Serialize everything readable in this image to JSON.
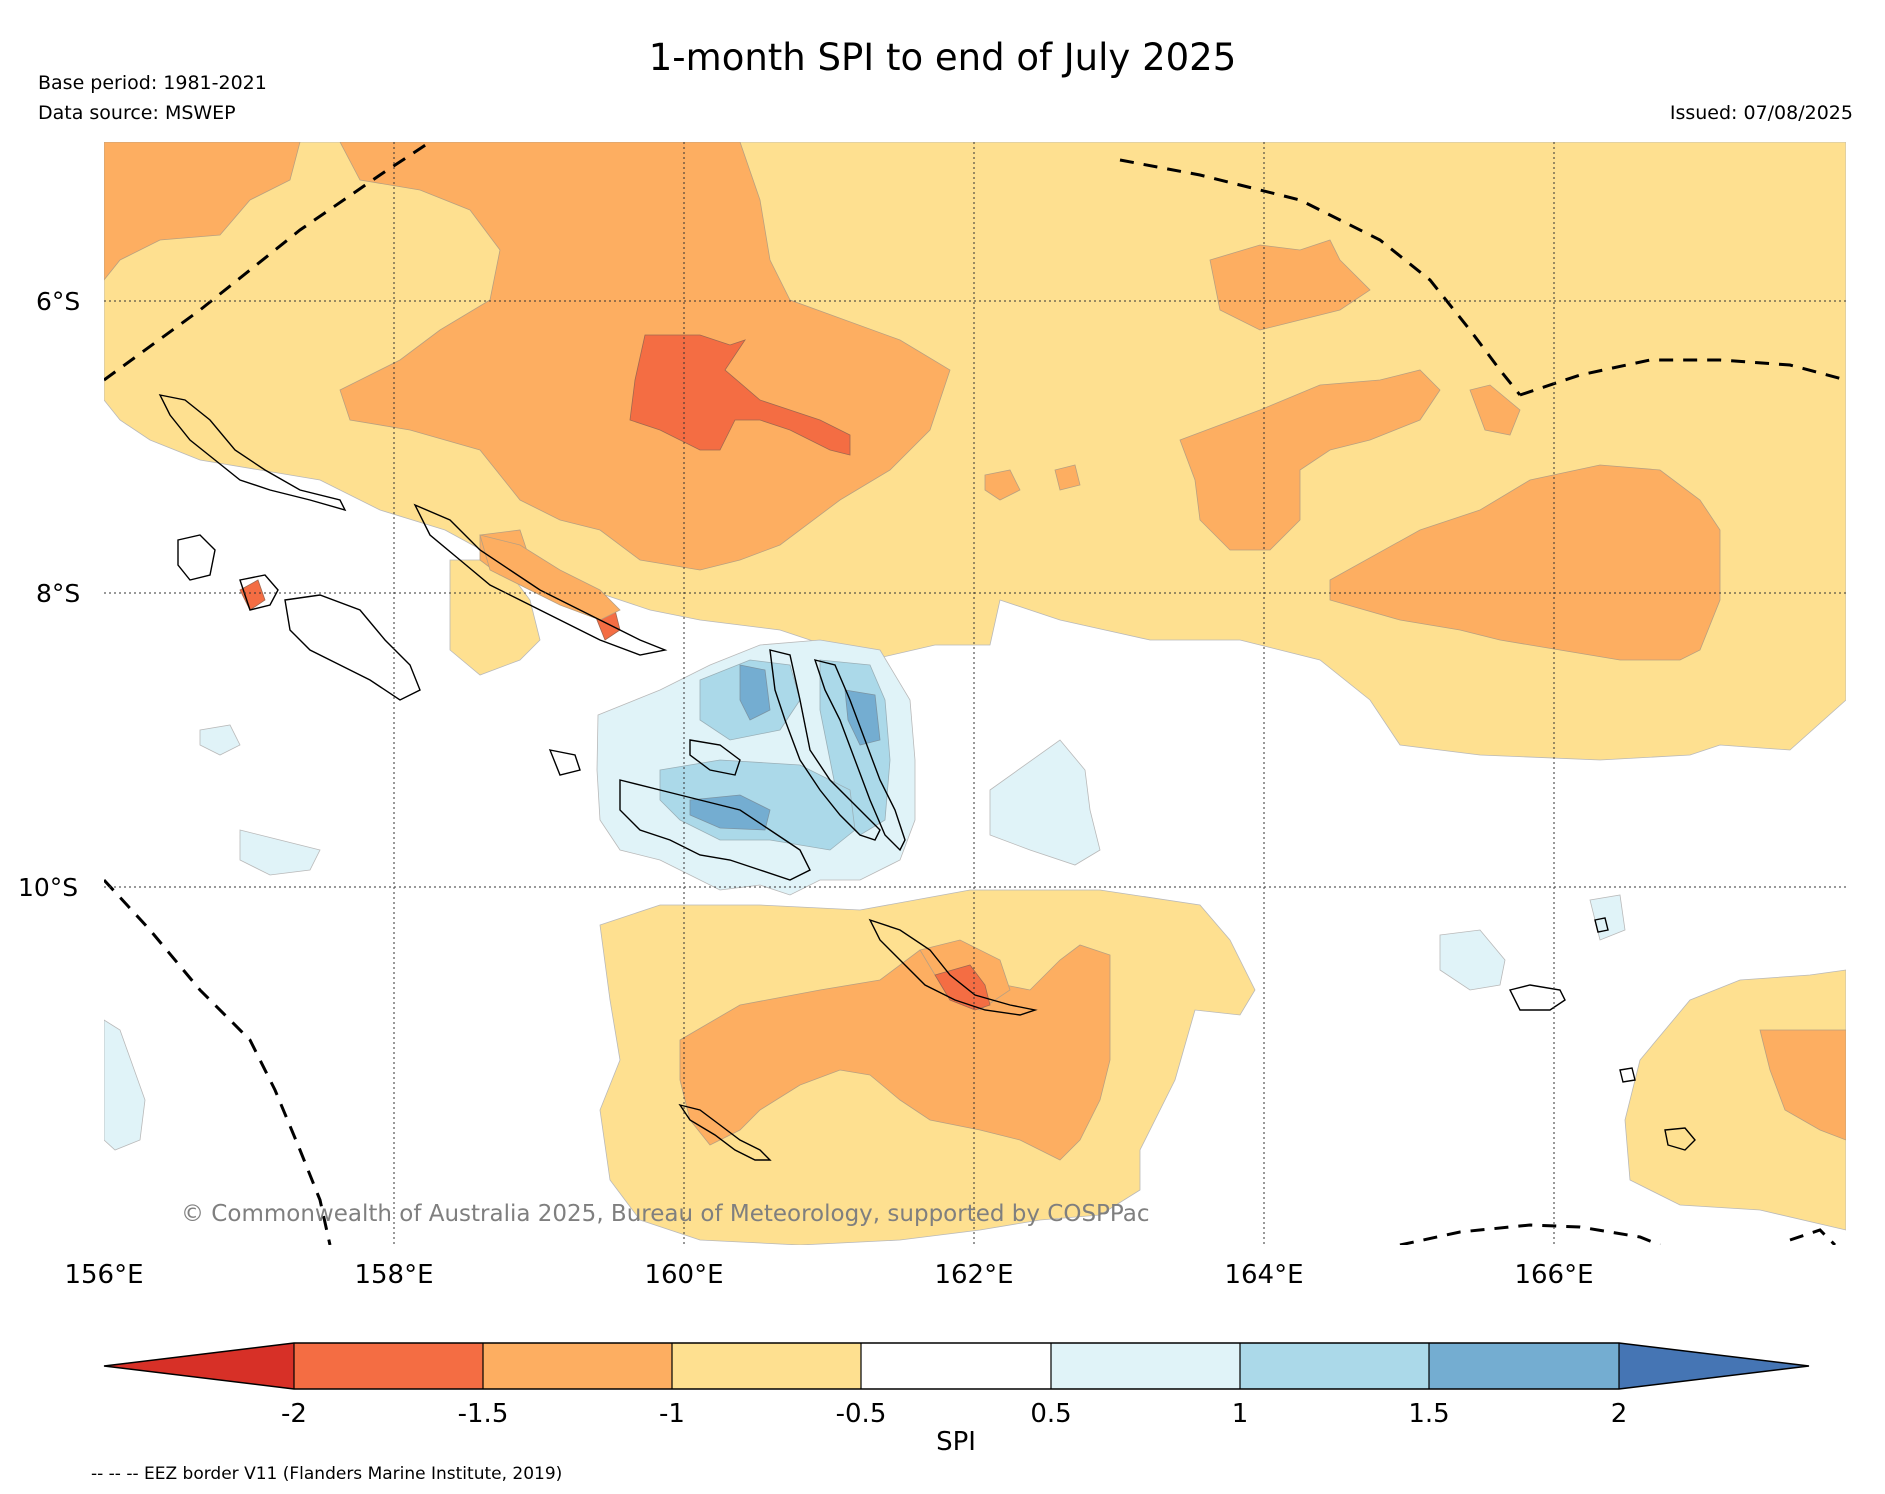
{
  "header": {
    "title": "1-month SPI to end of July 2025",
    "base_period": "Base period: 1981-2021",
    "data_source": "Data source: MSWEP",
    "issued": "Issued: 07/08/2025"
  },
  "map": {
    "lat_labels": [
      "6°S",
      "8°S",
      "10°S"
    ],
    "lon_labels": [
      "156°E",
      "158°E",
      "160°E",
      "162°E",
      "164°E",
      "166°E"
    ],
    "copyright": "© Commonwealth of Australia 2025, Bureau of Meteorology, supported by COSPPac"
  },
  "colorbar": {
    "label": "SPI",
    "ticks": [
      "-2",
      "-1.5",
      "-1",
      "-0.5",
      "0.5",
      "1",
      "1.5",
      "2"
    ],
    "colors": {
      "below_-2": "#d73027",
      "-2_-1.5": "#f46d43",
      "-1.5_-1": "#fdae61",
      "-1_-0.5": "#fee090",
      "-0.5_0.5": "#ffffff",
      "0.5_1": "#e0f3f8",
      "1_1.5": "#abd9e9",
      "1.5_2": "#74add1",
      "above_2": "#4575b4"
    }
  },
  "footer": {
    "eez_note": "-- -- -- EEZ border V11 (Flanders Marine Institute, 2019)"
  }
}
